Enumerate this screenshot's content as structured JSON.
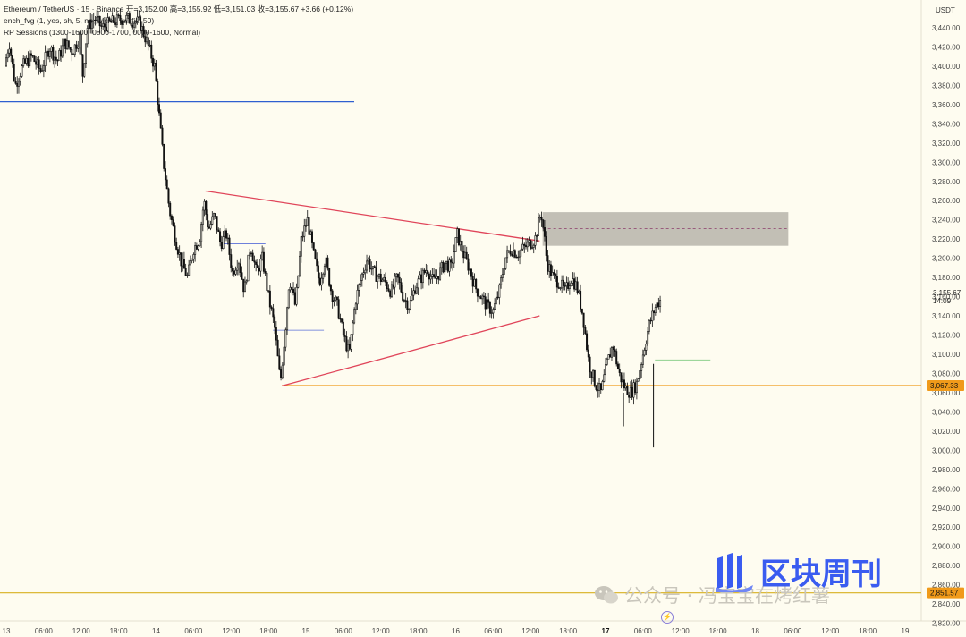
{
  "legend": {
    "line1": "Ethereum / TetherUS · 15 · Binance  开=3,152.00  高=3,155.92  低=3,151.03  收=3,155.67  +3.66 (+0.12%)",
    "line2": "ench_fvg (1, yes, sh, 5, no, wicks, full fill, 50)",
    "line3": "RP Sessions (1300-1600, 0800-1700, 0000-1600, Normal)"
  },
  "currency": "USDT",
  "watermark": {
    "left_text": "公众号 · 冯宝宝在烤红薯",
    "right_text": "区块周刊"
  },
  "chart_data": {
    "type": "candlestick",
    "title": "Ethereum / TetherUS · 15 · Binance",
    "ylim": [
      2820,
      3460
    ],
    "y_ticks": [
      "3,440.00",
      "3,420.00",
      "3,400.00",
      "3,380.00",
      "3,360.00",
      "3,340.00",
      "3,320.00",
      "3,300.00",
      "3,280.00",
      "3,260.00",
      "3,240.00",
      "3,220.00",
      "3,200.00",
      "3,180.00",
      "3,160.00",
      "3,140.00",
      "3,120.00",
      "3,100.00",
      "3,080.00",
      "3,060.00",
      "3,040.00",
      "3,020.00",
      "3,000.00",
      "2,980.00",
      "2,960.00",
      "2,940.00",
      "2,920.00",
      "2,900.00",
      "2,880.00",
      "2,860.00",
      "2,840.00",
      "2,820.00"
    ],
    "x_ticks": [
      {
        "label": "13",
        "day": 0.0,
        "bold": false
      },
      {
        "label": "06:00",
        "day": 0.25,
        "bold": false
      },
      {
        "label": "12:00",
        "day": 0.5,
        "bold": false
      },
      {
        "label": "18:00",
        "day": 0.75,
        "bold": false
      },
      {
        "label": "14",
        "day": 1.0,
        "bold": false
      },
      {
        "label": "06:00",
        "day": 1.25,
        "bold": false
      },
      {
        "label": "12:00",
        "day": 1.5,
        "bold": false
      },
      {
        "label": "18:00",
        "day": 1.75,
        "bold": false
      },
      {
        "label": "15",
        "day": 2.0,
        "bold": false
      },
      {
        "label": "06:00",
        "day": 2.25,
        "bold": false
      },
      {
        "label": "12:00",
        "day": 2.5,
        "bold": false
      },
      {
        "label": "18:00",
        "day": 2.75,
        "bold": false
      },
      {
        "label": "16",
        "day": 3.0,
        "bold": false
      },
      {
        "label": "06:00",
        "day": 3.25,
        "bold": false
      },
      {
        "label": "12:00",
        "day": 3.5,
        "bold": false
      },
      {
        "label": "18:00",
        "day": 3.75,
        "bold": false
      },
      {
        "label": "17",
        "day": 4.0,
        "bold": true
      },
      {
        "label": "06:00",
        "day": 4.25,
        "bold": false
      },
      {
        "label": "12:00",
        "day": 4.5,
        "bold": false
      },
      {
        "label": "18:00",
        "day": 4.75,
        "bold": false
      },
      {
        "label": "18",
        "day": 5.0,
        "bold": false
      },
      {
        "label": "06:00",
        "day": 5.25,
        "bold": false
      },
      {
        "label": "12:00",
        "day": 5.5,
        "bold": false
      },
      {
        "label": "18:00",
        "day": 5.75,
        "bold": false
      },
      {
        "label": "19",
        "day": 6.0,
        "bold": false
      }
    ],
    "price_path": [
      [
        0.0,
        3400
      ],
      [
        0.03,
        3425
      ],
      [
        0.07,
        3380
      ],
      [
        0.12,
        3400
      ],
      [
        0.18,
        3410
      ],
      [
        0.24,
        3395
      ],
      [
        0.3,
        3420
      ],
      [
        0.35,
        3405
      ],
      [
        0.4,
        3425
      ],
      [
        0.45,
        3415
      ],
      [
        0.5,
        3430
      ],
      [
        0.52,
        3390
      ],
      [
        0.55,
        3440
      ],
      [
        0.6,
        3450
      ],
      [
        0.65,
        3440
      ],
      [
        0.7,
        3445
      ],
      [
        0.8,
        3450
      ],
      [
        0.9,
        3445
      ],
      [
        0.95,
        3425
      ],
      [
        1.0,
        3400
      ],
      [
        1.03,
        3350
      ],
      [
        1.06,
        3300
      ],
      [
        1.1,
        3250
      ],
      [
        1.14,
        3220
      ],
      [
        1.18,
        3195
      ],
      [
        1.22,
        3180
      ],
      [
        1.26,
        3210
      ],
      [
        1.3,
        3220
      ],
      [
        1.33,
        3260
      ],
      [
        1.36,
        3230
      ],
      [
        1.4,
        3245
      ],
      [
        1.44,
        3215
      ],
      [
        1.48,
        3225
      ],
      [
        1.52,
        3185
      ],
      [
        1.56,
        3200
      ],
      [
        1.6,
        3165
      ],
      [
        1.64,
        3215
      ],
      [
        1.68,
        3185
      ],
      [
        1.72,
        3200
      ],
      [
        1.76,
        3160
      ],
      [
        1.8,
        3130
      ],
      [
        1.84,
        3070
      ],
      [
        1.87,
        3120
      ],
      [
        1.9,
        3180
      ],
      [
        1.94,
        3150
      ],
      [
        1.98,
        3220
      ],
      [
        2.02,
        3240
      ],
      [
        2.06,
        3205
      ],
      [
        2.1,
        3175
      ],
      [
        2.14,
        3200
      ],
      [
        2.18,
        3165
      ],
      [
        2.22,
        3150
      ],
      [
        2.26,
        3120
      ],
      [
        2.3,
        3100
      ],
      [
        2.34,
        3155
      ],
      [
        2.38,
        3180
      ],
      [
        2.42,
        3200
      ],
      [
        2.46,
        3185
      ],
      [
        2.5,
        3180
      ],
      [
        2.54,
        3175
      ],
      [
        2.58,
        3165
      ],
      [
        2.62,
        3180
      ],
      [
        2.66,
        3160
      ],
      [
        2.7,
        3150
      ],
      [
        2.74,
        3170
      ],
      [
        2.78,
        3180
      ],
      [
        2.82,
        3190
      ],
      [
        2.86,
        3175
      ],
      [
        2.9,
        3185
      ],
      [
        2.94,
        3195
      ],
      [
        2.98,
        3190
      ],
      [
        3.02,
        3225
      ],
      [
        3.06,
        3205
      ],
      [
        3.1,
        3190
      ],
      [
        3.14,
        3170
      ],
      [
        3.18,
        3160
      ],
      [
        3.22,
        3150
      ],
      [
        3.26,
        3145
      ],
      [
        3.3,
        3165
      ],
      [
        3.34,
        3200
      ],
      [
        3.38,
        3210
      ],
      [
        3.42,
        3205
      ],
      [
        3.46,
        3210
      ],
      [
        3.5,
        3215
      ],
      [
        3.54,
        3220
      ],
      [
        3.58,
        3248
      ],
      [
        3.6,
        3225
      ],
      [
        3.62,
        3195
      ],
      [
        3.66,
        3180
      ],
      [
        3.7,
        3175
      ],
      [
        3.74,
        3165
      ],
      [
        3.78,
        3180
      ],
      [
        3.82,
        3170
      ],
      [
        3.86,
        3140
      ],
      [
        3.9,
        3090
      ],
      [
        3.94,
        3070
      ],
      [
        3.98,
        3060
      ],
      [
        4.02,
        3090
      ],
      [
        4.06,
        3110
      ],
      [
        4.1,
        3080
      ],
      [
        4.14,
        3065
      ],
      [
        4.18,
        3060
      ],
      [
        4.22,
        3070
      ],
      [
        4.26,
        3100
      ],
      [
        4.3,
        3130
      ],
      [
        4.34,
        3148
      ],
      [
        4.37,
        3156
      ]
    ],
    "overlays": {
      "blue_level": 3363,
      "triangle_upper": [
        [
          1.33,
          3270
        ],
        [
          3.56,
          3218
        ]
      ],
      "triangle_lower": [
        [
          1.84,
          3067
        ],
        [
          3.56,
          3140
        ]
      ],
      "orange_level": 3067.33,
      "gold_level": 2851.57,
      "box_range": [
        3213,
        3248
      ],
      "box_mid": 3231,
      "box_days": [
        3.58,
        5.22
      ],
      "green_level": 3094,
      "small_blue_levels": [
        [
          1.45,
          1.73,
          3215
        ],
        [
          1.78,
          2.12,
          3125
        ]
      ]
    },
    "price_labels": {
      "current": "3,155.67",
      "countdown": "14:09",
      "orange": "3,067.33",
      "gold": "2,851.57"
    }
  }
}
